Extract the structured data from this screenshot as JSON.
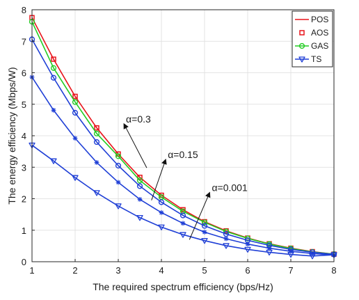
{
  "chart_data": {
    "type": "line",
    "title": "",
    "xlabel": "The required spectrum efficiency (bps/Hz)",
    "ylabel": "The energy efficiency (Mbps/W)",
    "xlim": [
      1,
      8
    ],
    "ylim": [
      0,
      8
    ],
    "grid": true,
    "legend_position": "top-right",
    "x_ticks": [
      "1",
      "2",
      "3",
      "4",
      "5",
      "6",
      "7",
      "8"
    ],
    "y_ticks": [
      "0",
      "1",
      "2",
      "3",
      "4",
      "5",
      "6",
      "7",
      "8"
    ],
    "x": [
      1,
      1.5,
      2,
      2.5,
      3,
      3.5,
      4,
      4.5,
      5,
      5.5,
      6,
      6.5,
      7,
      7.5,
      8
    ],
    "series": [
      {
        "name": "POS",
        "group": "alpha=0.3",
        "color": "#e8131a",
        "marker": "none",
        "line": true,
        "values": [
          7.75,
          6.43,
          5.25,
          4.25,
          3.42,
          2.68,
          2.11,
          1.65,
          1.27,
          0.98,
          0.75,
          0.57,
          0.43,
          0.32,
          0.24
        ]
      },
      {
        "name": "AOS",
        "group": "alpha=0.3",
        "color": "#e8131a",
        "marker": "square",
        "line": false,
        "values": [
          7.75,
          6.43,
          5.25,
          4.25,
          3.42,
          2.68,
          2.11,
          1.65,
          1.27,
          0.98,
          0.75,
          0.57,
          0.43,
          0.32,
          0.24
        ]
      },
      {
        "name": "GAS",
        "group": "alpha=0.3",
        "color": "#22cc22",
        "marker": "circle",
        "line": true,
        "values": [
          7.62,
          6.15,
          5.07,
          4.07,
          3.35,
          2.58,
          2.05,
          1.6,
          1.25,
          0.96,
          0.74,
          0.56,
          0.42,
          0.31,
          0.24
        ]
      },
      {
        "name": "",
        "group": "alpha=0.15",
        "color": "#1f3fd6",
        "marker": "circle",
        "line": true,
        "values": [
          7.06,
          5.84,
          4.73,
          3.8,
          3.05,
          2.4,
          1.89,
          1.47,
          1.14,
          0.88,
          0.68,
          0.52,
          0.39,
          0.3,
          0.23
        ]
      },
      {
        "name": "",
        "group": "alpha=0.001",
        "color": "#1f3fd6",
        "marker": "asterisk",
        "line": true,
        "values": [
          5.86,
          4.81,
          3.92,
          3.15,
          2.52,
          1.98,
          1.56,
          1.22,
          0.94,
          0.73,
          0.56,
          0.43,
          0.33,
          0.26,
          0.21
        ]
      },
      {
        "name": "TS",
        "group": "",
        "color": "#1f3fd6",
        "marker": "triangle-down",
        "line": true,
        "values": [
          3.7,
          3.2,
          2.67,
          2.19,
          1.77,
          1.4,
          1.1,
          0.86,
          0.67,
          0.51,
          0.39,
          0.3,
          0.23,
          0.18,
          0.22
        ]
      }
    ],
    "legend": [
      {
        "label": "POS",
        "color": "#e8131a",
        "marker": "none",
        "line": true
      },
      {
        "label": "AOS",
        "color": "#e8131a",
        "marker": "square",
        "line": false
      },
      {
        "label": "GAS",
        "color": "#22cc22",
        "marker": "circle",
        "line": true
      },
      {
        "label": "TS",
        "color": "#1f3fd6",
        "marker": "triangle-down",
        "line": true
      }
    ],
    "annotations": [
      {
        "text": "α=0.3",
        "arrow_from": [
          3.13,
          4.38
        ],
        "arrow_to": [
          3.66,
          2.98
        ]
      },
      {
        "text": "α=0.15",
        "arrow_from": [
          4.1,
          3.25
        ],
        "arrow_to": [
          3.77,
          1.95
        ]
      },
      {
        "text": "α=0.001",
        "arrow_from": [
          5.12,
          2.2
        ],
        "arrow_to": [
          4.65,
          0.7
        ]
      }
    ]
  }
}
